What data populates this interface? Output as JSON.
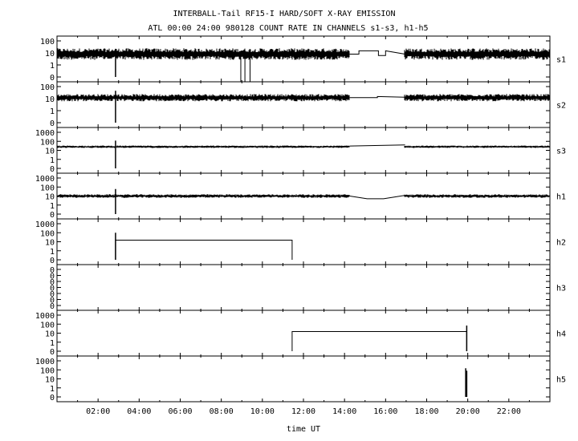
{
  "chart_data": {
    "type": "line",
    "title": "INTERBALL-Tail RF15-I HARD/SOFT X-RAY EMISSION",
    "subtitle": "ATL 00:00 24:00 980128  COUNT RATE IN CHANNELS s1-s3, h1-h5",
    "xlabel": "time UT",
    "xlim": [
      0,
      24
    ],
    "x_ticks": [
      "02:00",
      "04:00",
      "06:00",
      "08:00",
      "10:00",
      "12:00",
      "14:00",
      "16:00",
      "18:00",
      "20:00",
      "22:00"
    ],
    "y_scale": "log",
    "panels": [
      {
        "name": "s1",
        "ytick_labels": [
          "100",
          "10",
          "1",
          "0"
        ],
        "baseline": 8,
        "noise": 0.32,
        "segments": [
          [
            0,
            14.25
          ],
          [
            16.95,
            24
          ]
        ],
        "spikes": [
          [
            2.85,
            22
          ]
        ],
        "dips": [
          [
            8.95,
            0.1
          ],
          [
            9.15,
            0.1
          ],
          [
            9.4,
            0.1
          ]
        ],
        "data_gap": {
          "x": [
            14.25,
            14.7,
            14.7,
            15.65,
            15.65,
            16.0,
            16.0,
            16.95
          ],
          "y": [
            8,
            8,
            15,
            15,
            6,
            6,
            15,
            8
          ]
        }
      },
      {
        "name": "s2",
        "ytick_labels": [
          "100",
          "10",
          "1",
          "0"
        ],
        "baseline": 12,
        "noise": 0.2,
        "segments": [
          [
            0,
            14.25
          ],
          [
            16.95,
            24
          ]
        ],
        "spikes": [
          [
            2.85,
            45
          ]
        ],
        "dips": [],
        "data_gap": {
          "x": [
            14.25,
            15.6,
            15.6,
            16.95
          ],
          "y": [
            12,
            12,
            15,
            13
          ]
        }
      },
      {
        "name": "s3",
        "ytick_labels": [
          "1000",
          "100",
          "10",
          "1",
          "0"
        ],
        "baseline": 25,
        "noise": 0.09,
        "segments": [
          [
            0,
            14.25
          ],
          [
            16.95,
            24
          ]
        ],
        "spikes": [
          [
            2.85,
            120
          ]
        ],
        "dips": [],
        "data_gap": {
          "x": [
            14.25,
            16.95
          ],
          "y": [
            30,
            40
          ]
        }
      },
      {
        "name": "h1",
        "ytick_labels": [
          "1000",
          "100",
          "10",
          "1",
          "0"
        ],
        "baseline": 10,
        "noise": 0.13,
        "segments": [
          [
            0,
            14.25
          ],
          [
            16.95,
            24
          ]
        ],
        "spikes": [
          [
            2.85,
            60
          ]
        ],
        "dips": [],
        "data_gap": {
          "x": [
            14.25,
            15.1,
            15.1,
            15.9,
            15.9,
            16.95
          ],
          "y": [
            10,
            5,
            5,
            5,
            5,
            12
          ]
        }
      },
      {
        "name": "h2",
        "ytick_labels": [
          "1000",
          "100",
          "10",
          "1",
          "0"
        ],
        "steps": {
          "x": [
            2.85,
            2.85,
            11.45,
            11.45
          ],
          "y": [
            0,
            15,
            15,
            0
          ]
        },
        "spikes": [
          [
            2.85,
            100
          ]
        ]
      },
      {
        "name": "h3",
        "ytick_labels": [
          "0",
          "0",
          "0",
          "0",
          "0",
          "0",
          "0"
        ],
        "steps": null,
        "spikes": []
      },
      {
        "name": "h4",
        "ytick_labels": [
          "1000",
          "100",
          "10",
          "1",
          "0"
        ],
        "steps": {
          "x": [
            11.45,
            11.45,
            19.95,
            19.95
          ],
          "y": [
            0,
            15,
            15,
            0
          ]
        },
        "spikes": [
          [
            19.95,
            70
          ]
        ]
      },
      {
        "name": "h5",
        "ytick_labels": [
          "1000",
          "100",
          "10",
          "1",
          "0"
        ],
        "steps": null,
        "spikes": [
          [
            19.9,
            150
          ],
          [
            19.95,
            80
          ]
        ]
      }
    ]
  }
}
